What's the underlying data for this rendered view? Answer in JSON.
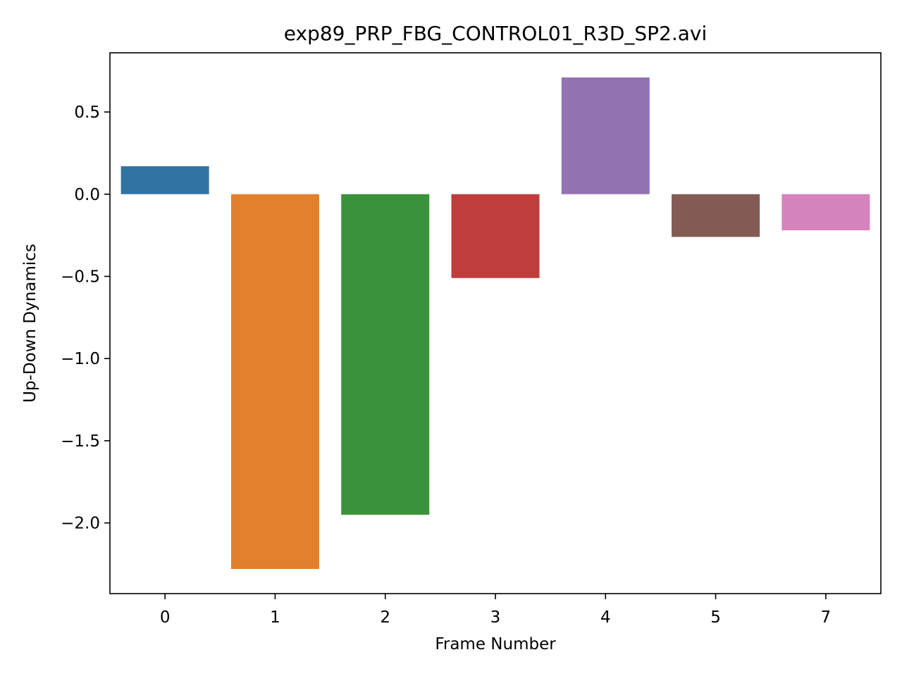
{
  "chart_data": {
    "type": "bar",
    "title": "exp89_PRP_FBG_CONTROL01_R3D_SP2.avi",
    "xlabel": "Frame Number",
    "ylabel": "Up-Down Dynamics",
    "categories": [
      "0",
      "1",
      "2",
      "3",
      "4",
      "5",
      "7"
    ],
    "values": [
      0.17,
      -2.28,
      -1.95,
      -0.51,
      0.71,
      -0.26,
      -0.22
    ],
    "colors": [
      "#3274a1",
      "#e1812c",
      "#3a923a",
      "#c03d3e",
      "#9372b2",
      "#845b53",
      "#d684bd"
    ],
    "ylim": [
      -2.43,
      0.86
    ],
    "yticks": [
      0.5,
      0.0,
      -0.5,
      -1.0,
      -1.5,
      -2.0
    ],
    "ytick_labels": [
      "0.5",
      "0.0",
      "−0.5",
      "−1.0",
      "−1.5",
      "−2.0"
    ],
    "grid": false,
    "legend": "none"
  }
}
